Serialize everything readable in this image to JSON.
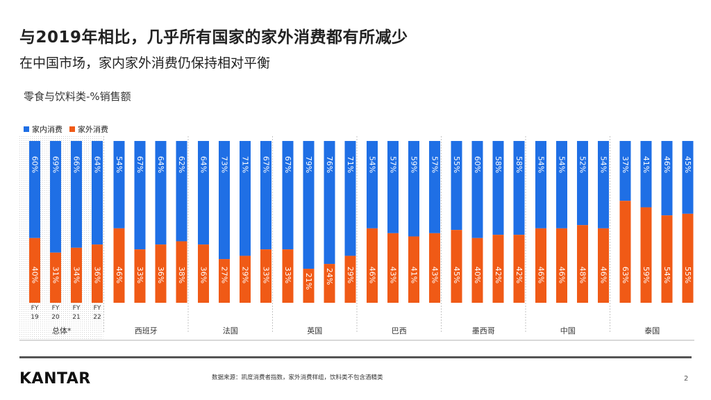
{
  "title": "与2019年相比，几乎所有国家的家外消费都有所减少",
  "subtitle": "在中国市场，家内家外消费仍保持相对平衡",
  "chart_label": "零食与饮料类-%销售额",
  "footer": {
    "logo": "KANTAR",
    "source": "数据来源：凯度消费者指数，家外消费样组，饮料类不包含酒精类",
    "page": "2"
  },
  "colors": {
    "home": "#1f6fe5",
    "out": "#f05a16"
  },
  "chart_data": {
    "type": "bar",
    "stacked": true,
    "percent": true,
    "legend": [
      "家内消费",
      "家外消费"
    ],
    "legend_position": "top-left",
    "ylim": [
      0,
      100
    ],
    "year_labels": [
      [
        "FY",
        "19"
      ],
      [
        "FY",
        "20"
      ],
      [
        "FY",
        "21"
      ],
      [
        "FY",
        "22"
      ]
    ],
    "groups": [
      {
        "name": "总体*",
        "home": [
          60,
          69,
          66,
          64
        ],
        "out": [
          40,
          31,
          34,
          36
        ]
      },
      {
        "name": "西班牙",
        "home": [
          54,
          67,
          64,
          62
        ],
        "out": [
          46,
          33,
          36,
          38
        ]
      },
      {
        "name": "法国",
        "home": [
          64,
          73,
          71,
          67
        ],
        "out": [
          36,
          27,
          29,
          33
        ]
      },
      {
        "name": "英国",
        "home": [
          67,
          79,
          76,
          71
        ],
        "out": [
          33,
          21,
          24,
          29
        ]
      },
      {
        "name": "巴西",
        "home": [
          54,
          57,
          59,
          57
        ],
        "out": [
          46,
          43,
          41,
          43
        ]
      },
      {
        "name": "墨西哥",
        "home": [
          55,
          60,
          58,
          58
        ],
        "out": [
          45,
          40,
          42,
          42
        ]
      },
      {
        "name": "中国",
        "home": [
          54,
          54,
          52,
          54
        ],
        "out": [
          46,
          46,
          48,
          46
        ]
      },
      {
        "name": "泰国",
        "home": [
          37,
          41,
          46,
          45
        ],
        "out": [
          63,
          59,
          54,
          55
        ]
      }
    ]
  }
}
